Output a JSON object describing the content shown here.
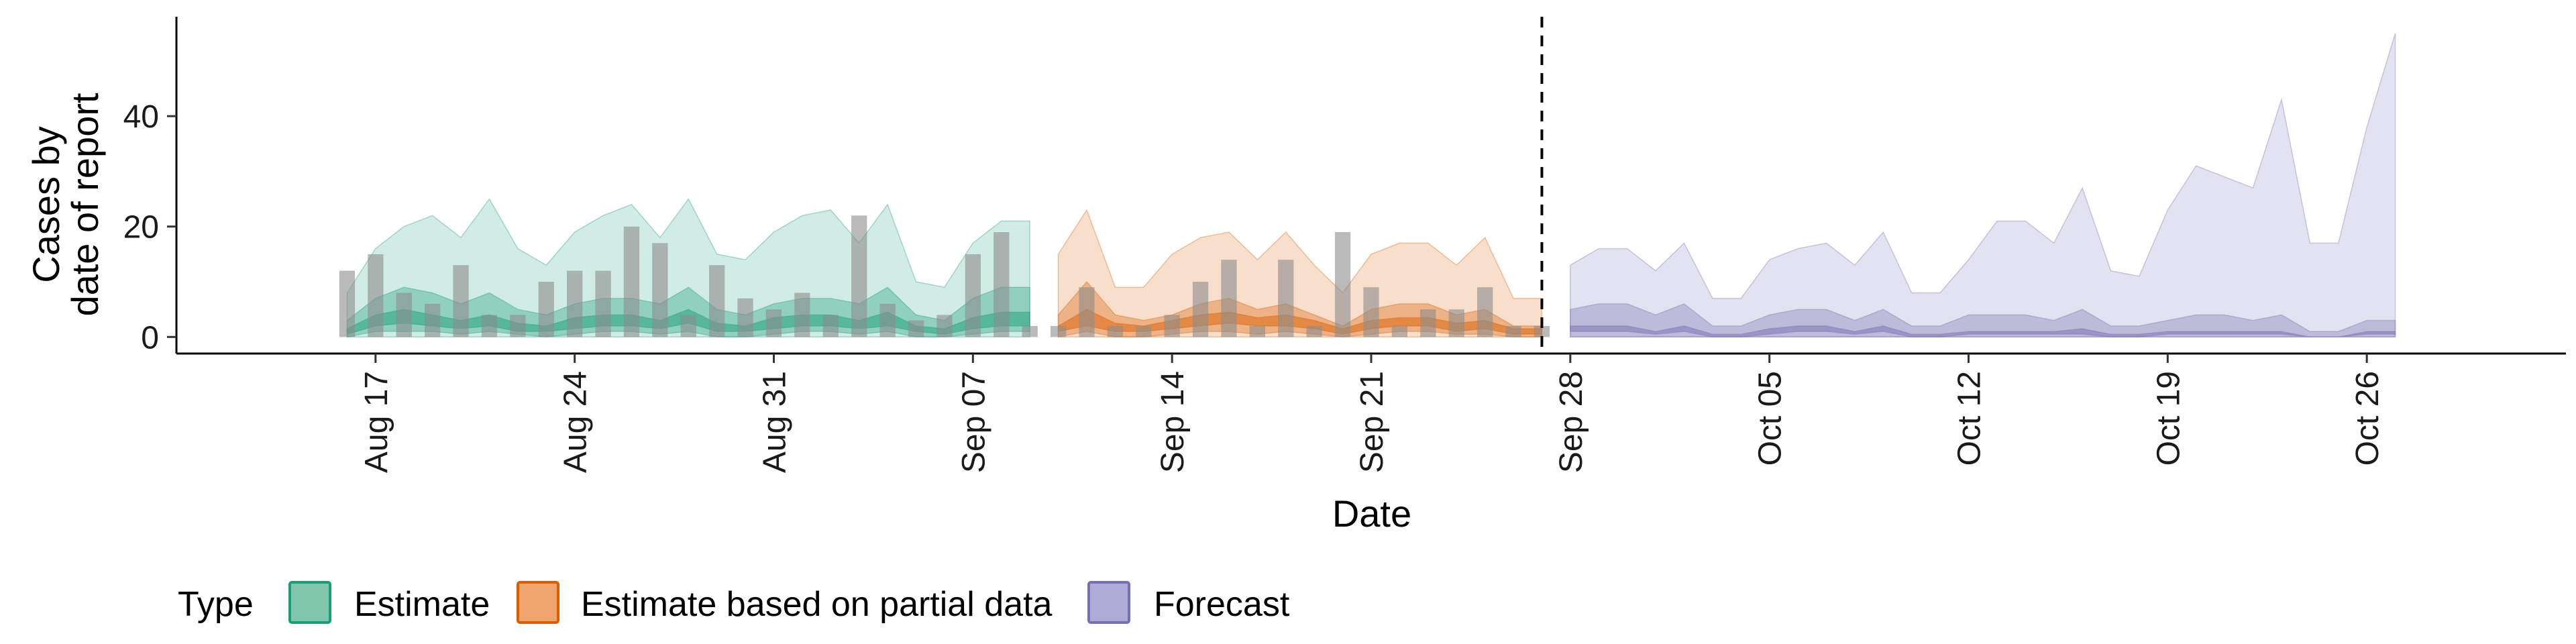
{
  "chart_data": {
    "type": "area",
    "xlabel": "Date",
    "ylabel_lines": [
      "Cases by",
      "date of report"
    ],
    "ylim": [
      -3,
      58
    ],
    "y_ticks": [
      0,
      20,
      40
    ],
    "x_range": [
      "2020-08-10",
      "2020-11-02"
    ],
    "x_ticks": [
      {
        "date": "2020-08-17",
        "label": "Aug 17"
      },
      {
        "date": "2020-08-24",
        "label": "Aug 24"
      },
      {
        "date": "2020-08-31",
        "label": "Aug 31"
      },
      {
        "date": "2020-09-07",
        "label": "Sep 07"
      },
      {
        "date": "2020-09-14",
        "label": "Sep 14"
      },
      {
        "date": "2020-09-21",
        "label": "Sep 21"
      },
      {
        "date": "2020-09-28",
        "label": "Sep 28"
      },
      {
        "date": "2020-10-05",
        "label": "Oct 05"
      },
      {
        "date": "2020-10-12",
        "label": "Oct 12"
      },
      {
        "date": "2020-10-19",
        "label": "Oct 19"
      },
      {
        "date": "2020-10-26",
        "label": "Oct 26"
      }
    ],
    "forecast_start": "2020-09-27",
    "legend": {
      "title": "Type",
      "position": "bottom",
      "entries": [
        {
          "label": "Estimate",
          "fill": "#7fc6ad",
          "stroke": "#1b9e77"
        },
        {
          "label": "Estimate based on partial data",
          "fill": "#eea46a",
          "stroke": "#d95f02"
        },
        {
          "label": "Forecast",
          "fill": "#afabd6",
          "stroke": "#7570b3"
        }
      ]
    },
    "colors": {
      "Estimate": "#1b9e77",
      "Estimate based on partial data": "#d95f02",
      "Forecast": "#7570b3",
      "bars": "#8c8c8c"
    },
    "reported_cases": {
      "start": "2020-08-16",
      "values": [
        12,
        15,
        8,
        6,
        13,
        4,
        4,
        10,
        12,
        12,
        20,
        17,
        4,
        13,
        7,
        5,
        8,
        4,
        22,
        6,
        3,
        4,
        15,
        19,
        2,
        2,
        9,
        2,
        2,
        4,
        10,
        14,
        2,
        14,
        2,
        19,
        9,
        2,
        5,
        5,
        9,
        2,
        2
      ]
    },
    "series": [
      {
        "name": "Estimate",
        "start": "2020-08-16",
        "upper90": [
          8,
          16,
          20,
          22,
          18,
          25,
          16,
          13,
          19,
          22,
          24,
          18,
          25,
          15,
          14,
          19,
          22,
          23,
          17,
          24,
          10,
          9,
          17,
          21,
          21
        ],
        "upper50": [
          3,
          7,
          9,
          8,
          6,
          8,
          5,
          4,
          6,
          7,
          7,
          6,
          9,
          5,
          4,
          6,
          7,
          7,
          6,
          9,
          4,
          3,
          7,
          9,
          9
        ],
        "upper20": [
          1.5,
          4,
          5,
          4,
          3,
          4,
          2.5,
          2,
          3.5,
          4,
          4,
          3,
          5,
          2.5,
          2,
          3.5,
          4,
          4,
          3,
          4.5,
          2,
          1.5,
          3.5,
          4.5,
          4.5
        ],
        "lower20": [
          0.5,
          2,
          2.5,
          2,
          1.5,
          2,
          1,
          1,
          1.5,
          2,
          2,
          1.5,
          2.5,
          1,
          1,
          1.5,
          2,
          2,
          1.5,
          2,
          1,
          0.5,
          1.5,
          2,
          2
        ],
        "lower50": [
          0,
          1,
          1,
          1,
          0.5,
          1,
          0.5,
          0,
          0.5,
          1,
          1,
          0.5,
          1,
          0,
          0,
          0.5,
          1,
          1,
          0.5,
          1,
          0,
          0,
          0.5,
          1,
          1
        ],
        "lower90": [
          0,
          0,
          0,
          0,
          0,
          0,
          0,
          0,
          0,
          0,
          0,
          0,
          0,
          0,
          0,
          0,
          0,
          0,
          0,
          0,
          0,
          0,
          0,
          0,
          0
        ]
      },
      {
        "name": "Estimate based on partial data",
        "start": "2020-09-10",
        "upper90": [
          15,
          23,
          9,
          9,
          15,
          18,
          19,
          14,
          19,
          13,
          8,
          15,
          17,
          17,
          13,
          18,
          7,
          7
        ],
        "upper50": [
          4,
          10,
          4,
          3,
          4,
          6,
          7,
          5,
          6,
          4,
          2,
          5,
          6,
          6,
          4,
          5,
          2,
          2
        ],
        "upper20": [
          2,
          5,
          2.5,
          2,
          3,
          4,
          4.5,
          3.5,
          4,
          3,
          1.5,
          3,
          3.5,
          3.5,
          2.5,
          3,
          1.5,
          1.5
        ],
        "lower20": [
          1,
          2,
          1,
          1,
          1.5,
          2,
          2.5,
          2,
          2,
          1.5,
          0.5,
          1.5,
          2,
          2,
          1,
          1.5,
          0.5,
          0.5
        ],
        "lower50": [
          0,
          1,
          0,
          0,
          0.5,
          1,
          1,
          0.5,
          1,
          0.5,
          0,
          0.5,
          1,
          1,
          0.5,
          0.5,
          0,
          0
        ],
        "lower90": [
          0,
          0,
          0,
          0,
          0,
          0,
          0,
          0,
          0,
          0,
          0,
          0,
          0,
          0,
          0,
          0,
          0,
          0
        ]
      },
      {
        "name": "Forecast",
        "start": "2020-09-28",
        "upper90": [
          13,
          16,
          16,
          12,
          17,
          7,
          7,
          14,
          16,
          17,
          13,
          19,
          8,
          8,
          14,
          21,
          21,
          17,
          27,
          12,
          11,
          23,
          31,
          29,
          27,
          43,
          17,
          17,
          38,
          55
        ],
        "upper50": [
          5,
          6,
          6,
          4,
          6,
          2,
          2,
          4,
          5,
          5,
          3,
          5,
          2,
          2,
          4,
          4,
          4,
          3,
          5,
          2,
          2,
          3,
          4,
          4,
          3,
          4,
          1,
          1,
          3,
          3
        ],
        "upper20": [
          2,
          2,
          2,
          1,
          2,
          0.5,
          0.5,
          1.5,
          2,
          2,
          1,
          2,
          0.5,
          0.5,
          1,
          1,
          1,
          1,
          1.5,
          0.5,
          0.5,
          1,
          1,
          1,
          1,
          1,
          0,
          0,
          1,
          1
        ],
        "lower20": [
          1,
          1,
          1,
          0.5,
          1,
          0,
          0,
          0.5,
          1,
          1,
          0.5,
          1,
          0,
          0,
          0.5,
          0.5,
          0.5,
          0.5,
          0.5,
          0,
          0,
          0.5,
          0.5,
          0.5,
          0.5,
          0.5,
          0,
          0,
          0.5,
          0.5
        ],
        "lower50": [
          0,
          0,
          0,
          0,
          0,
          0,
          0,
          0,
          0,
          0,
          0,
          0,
          0,
          0,
          0,
          0,
          0,
          0,
          0,
          0,
          0,
          0,
          0,
          0,
          0,
          0,
          0,
          0,
          0,
          0
        ],
        "lower90": [
          0,
          0,
          0,
          0,
          0,
          0,
          0,
          0,
          0,
          0,
          0,
          0,
          0,
          0,
          0,
          0,
          0,
          0,
          0,
          0,
          0,
          0,
          0,
          0,
          0,
          0,
          0,
          0,
          0,
          0
        ]
      }
    ]
  }
}
